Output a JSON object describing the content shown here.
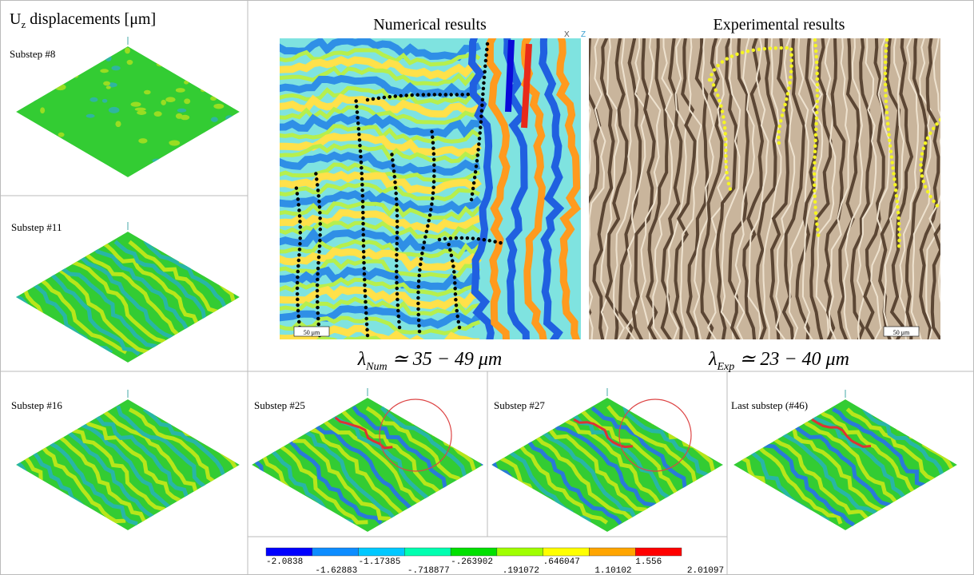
{
  "header": {
    "symbol": "U",
    "subscript": "z",
    "text": " displacements [μm]"
  },
  "panels": [
    {
      "label": "Substep #8"
    },
    {
      "label": "Substep #11"
    },
    {
      "label": "Substep #16"
    },
    {
      "label": "Substep #25"
    },
    {
      "label": "Substep #27"
    },
    {
      "label": "Last substep (#46)"
    }
  ],
  "numerical": {
    "title": "Numerical results",
    "scale_bar": "50 μm",
    "axes": [
      "X",
      "Z"
    ],
    "wavelength": {
      "symbol": "λ",
      "subscript": "Num",
      "text": " ≃ 35 − 49 μm"
    }
  },
  "experimental": {
    "title": "Experimental results",
    "scale_bar": "50 μm",
    "wavelength": {
      "symbol": "λ",
      "subscript": "Exp",
      "text": " ≃ 23 − 40 μm"
    }
  },
  "colorbar": {
    "colors": [
      "#0000ff",
      "#0d8cff",
      "#00c8ff",
      "#00ffb0",
      "#00e000",
      "#a0ff00",
      "#ffff00",
      "#ffa500",
      "#ff0000"
    ],
    "upper_labels": [
      "-2.0838",
      "-1.17385",
      "-.263902",
      ".646047",
      "1.556"
    ],
    "lower_labels": [
      "-1.62883",
      "-.718877",
      ".191072",
      "1.10102",
      "2.01097"
    ]
  }
}
